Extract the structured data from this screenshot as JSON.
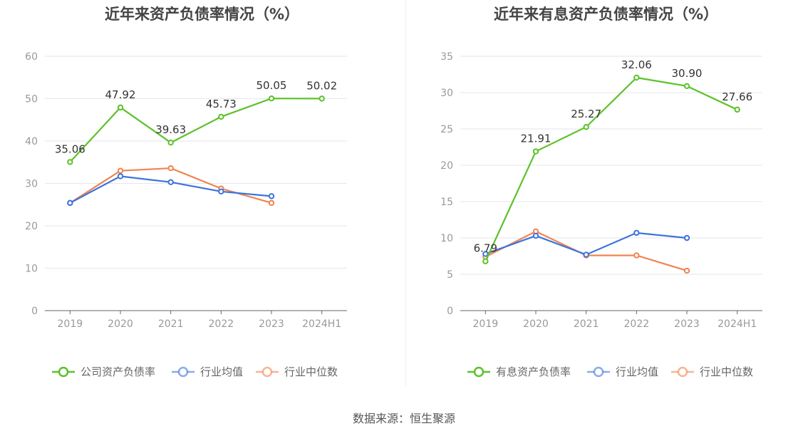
{
  "source_label": "数据来源：恒生聚源",
  "chart_data": [
    {
      "type": "line",
      "title": "近年来资产负债率情况（%）",
      "categories": [
        "2019",
        "2020",
        "2021",
        "2022",
        "2023",
        "2024H1"
      ],
      "ylim": [
        0,
        60
      ],
      "yticks": [
        0,
        10,
        20,
        30,
        40,
        50,
        60
      ],
      "grid": true,
      "legend_position": "bottom",
      "series": [
        {
          "name": "公司资产负债率",
          "color": "#5cc22a",
          "values": [
            35.06,
            47.92,
            39.63,
            45.73,
            50.05,
            50.02
          ],
          "labels": [
            "35.06",
            "47.92",
            "39.63",
            "45.73",
            "50.05",
            "50.02"
          ],
          "show_labels": true
        },
        {
          "name": "行业均值",
          "color": "#3d74db",
          "values": [
            25.4,
            31.7,
            30.3,
            28.1,
            27.0,
            null
          ],
          "show_labels": false
        },
        {
          "name": "行业中位数",
          "color": "#f08350",
          "values": [
            25.4,
            33.0,
            33.6,
            28.8,
            25.4,
            null
          ],
          "show_labels": false
        }
      ]
    },
    {
      "type": "line",
      "title": "近年来有息资产负债率情况（%）",
      "categories": [
        "2019",
        "2020",
        "2021",
        "2022",
        "2023",
        "2024H1"
      ],
      "ylim": [
        0,
        35
      ],
      "yticks": [
        0,
        5,
        10,
        15,
        20,
        25,
        30,
        35
      ],
      "grid": true,
      "legend_position": "bottom",
      "series": [
        {
          "name": "有息资产负债率",
          "color": "#5cc22a",
          "values": [
            6.79,
            21.91,
            25.27,
            32.06,
            30.9,
            27.66
          ],
          "labels": [
            "6.79",
            "21.91",
            "25.27",
            "32.06",
            "30.90",
            "27.66"
          ],
          "show_labels": true
        },
        {
          "name": "行业均值",
          "color": "#3d74db",
          "values": [
            7.8,
            10.3,
            7.7,
            10.7,
            10.0,
            null
          ],
          "show_labels": false
        },
        {
          "name": "行业中位数",
          "color": "#f08350",
          "values": [
            7.4,
            10.9,
            7.6,
            7.6,
            5.5,
            null
          ],
          "show_labels": false
        }
      ]
    }
  ]
}
